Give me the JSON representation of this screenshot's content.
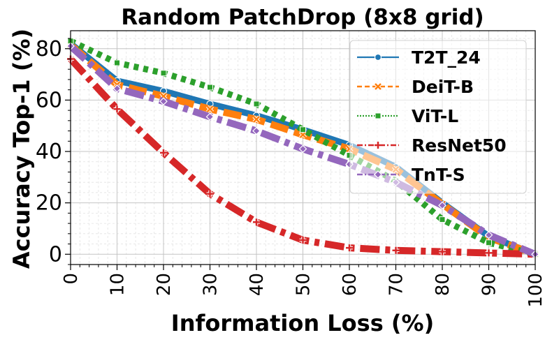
{
  "chart_data": {
    "type": "line",
    "title": "Random PatchDrop (8x8 grid)",
    "xlabel": "Information Loss (%)",
    "ylabel": "Accuracy Top-1 (%)",
    "xlim": [
      0,
      100
    ],
    "ylim": [
      -4,
      87
    ],
    "xticks": [
      0,
      10,
      20,
      30,
      40,
      50,
      60,
      70,
      80,
      90,
      100
    ],
    "yticks": [
      0,
      20,
      40,
      60,
      80
    ],
    "grid": true,
    "legend_position": "top-right",
    "x": [
      0,
      10,
      20,
      30,
      40,
      50,
      60,
      70,
      80,
      90,
      100
    ],
    "series": [
      {
        "name": "T2T_24",
        "color": "#1f77b4",
        "linestyle": "solid",
        "marker": "circle",
        "values": [
          82,
          67.5,
          63.5,
          58.5,
          54,
          48.5,
          42.5,
          34,
          20,
          7,
          0
        ]
      },
      {
        "name": "DeiT-B",
        "color": "#ff7f0e",
        "linestyle": "dashed",
        "marker": "x",
        "values": [
          81.5,
          66,
          61.5,
          56.5,
          52.5,
          46.5,
          41,
          33,
          19.5,
          6.5,
          0
        ]
      },
      {
        "name": "ViT-L",
        "color": "#2ca02c",
        "linestyle": "dotted",
        "marker": "square",
        "values": [
          83,
          74.5,
          70.5,
          65,
          58.5,
          48.5,
          38.5,
          28.5,
          13.5,
          4.5,
          0
        ]
      },
      {
        "name": "ResNet50",
        "color": "#d62728",
        "linestyle": "dashdot",
        "marker": "plus",
        "values": [
          76,
          56.5,
          39.5,
          23.5,
          12.5,
          5.5,
          2.5,
          1.5,
          1,
          0.5,
          0
        ]
      },
      {
        "name": "TnT-S",
        "color": "#9467bd",
        "linestyle": "dashdot",
        "marker": "diamond",
        "values": [
          81,
          64.5,
          59.5,
          53.5,
          48,
          41,
          35,
          28,
          19,
          7.5,
          0
        ]
      }
    ]
  }
}
